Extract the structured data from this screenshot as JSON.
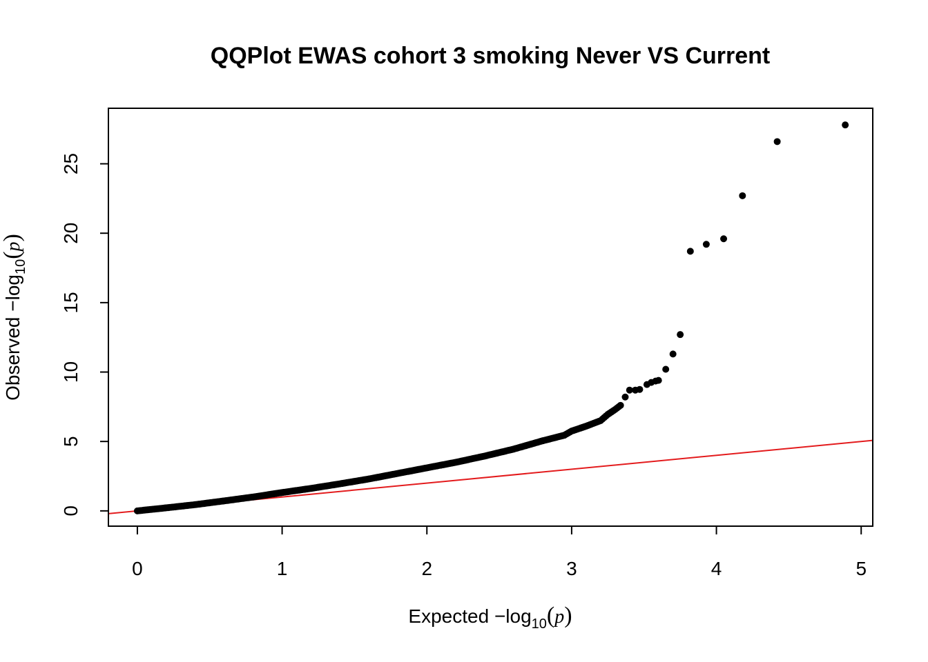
{
  "chart_data": {
    "type": "scatter",
    "title": "QQPlot EWAS cohort 3 smoking Never VS Current",
    "xlabel": {
      "prefix": "Expected  −log",
      "sub": "10",
      "open": "(",
      "var": "p",
      "close": ")"
    },
    "ylabel": {
      "prefix": "Observed  −log",
      "sub": "10",
      "open": "(",
      "var": "p",
      "close": ")"
    },
    "xlim": [
      -0.2,
      5.08
    ],
    "ylim": [
      -1.1,
      29
    ],
    "xticks": [
      "0",
      "1",
      "2",
      "3",
      "4",
      "5"
    ],
    "yticks": [
      "0",
      "5",
      "10",
      "15",
      "20",
      "25"
    ],
    "point_color": "#000000",
    "reference_line_color": "#e31a1c",
    "reference_line": {
      "slope": 1,
      "intercept": 0
    },
    "curve_points": [
      [
        0.0,
        0.0
      ],
      [
        0.2,
        0.22
      ],
      [
        0.4,
        0.45
      ],
      [
        0.6,
        0.72
      ],
      [
        0.8,
        1.0
      ],
      [
        1.0,
        1.32
      ],
      [
        1.2,
        1.62
      ],
      [
        1.4,
        1.95
      ],
      [
        1.6,
        2.3
      ],
      [
        1.8,
        2.7
      ],
      [
        2.0,
        3.1
      ],
      [
        2.2,
        3.5
      ],
      [
        2.4,
        3.95
      ],
      [
        2.6,
        4.45
      ],
      [
        2.8,
        5.05
      ],
      [
        2.95,
        5.45
      ],
      [
        3.0,
        5.75
      ],
      [
        3.1,
        6.1
      ],
      [
        3.2,
        6.5
      ],
      [
        3.25,
        6.95
      ],
      [
        3.3,
        7.3
      ],
      [
        3.35,
        7.7
      ]
    ],
    "outlier_points": [
      [
        3.37,
        8.2
      ],
      [
        3.4,
        8.7
      ],
      [
        3.44,
        8.7
      ],
      [
        3.47,
        8.75
      ],
      [
        3.52,
        9.1
      ],
      [
        3.55,
        9.25
      ],
      [
        3.58,
        9.35
      ],
      [
        3.6,
        9.4
      ],
      [
        3.65,
        10.2
      ],
      [
        3.7,
        11.3
      ],
      [
        3.75,
        12.7
      ],
      [
        3.82,
        18.7
      ],
      [
        3.93,
        19.2
      ],
      [
        4.05,
        19.6
      ],
      [
        4.18,
        22.7
      ],
      [
        4.42,
        26.6
      ],
      [
        4.89,
        27.8
      ]
    ]
  }
}
